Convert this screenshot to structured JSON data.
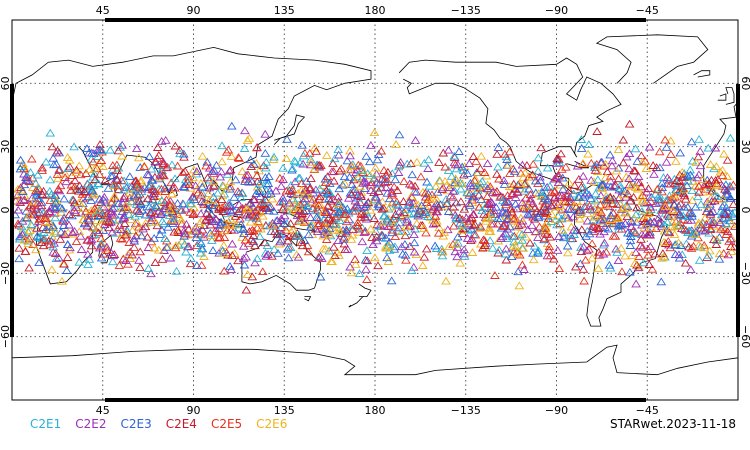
{
  "map": {
    "title": "STARwet.2023-11-18",
    "extent": {
      "lon_start": 0,
      "lon_end": 360,
      "lat_min": -90,
      "lat_max": 90
    },
    "lon_ticks": [
      {
        "lon": 45,
        "label": "45"
      },
      {
        "lon": 90,
        "label": "90"
      },
      {
        "lon": 135,
        "label": "135"
      },
      {
        "lon": 180,
        "label": "180"
      },
      {
        "lon": 225,
        "label": "−135"
      },
      {
        "lon": 270,
        "label": "−90"
      },
      {
        "lon": 315,
        "label": "−45"
      }
    ],
    "lat_ticks": [
      {
        "lat": 60,
        "label": "60"
      },
      {
        "lat": 30,
        "label": "30"
      },
      {
        "lat": 0,
        "label": "0"
      },
      {
        "lat": -30,
        "label": "−30"
      },
      {
        "lat": -60,
        "label": "−60"
      }
    ],
    "marker": "triangle",
    "marker_band_lat": [
      -40,
      43
    ],
    "series": [
      {
        "name": "C2E1",
        "color": "#27b3d6"
      },
      {
        "name": "C2E2",
        "color": "#9b2fb8"
      },
      {
        "name": "C2E3",
        "color": "#2a63d9"
      },
      {
        "name": "C2E4",
        "color": "#c21a2a"
      },
      {
        "name": "C2E5",
        "color": "#e5311f"
      },
      {
        "name": "C2E6",
        "color": "#f0b21a"
      }
    ]
  }
}
